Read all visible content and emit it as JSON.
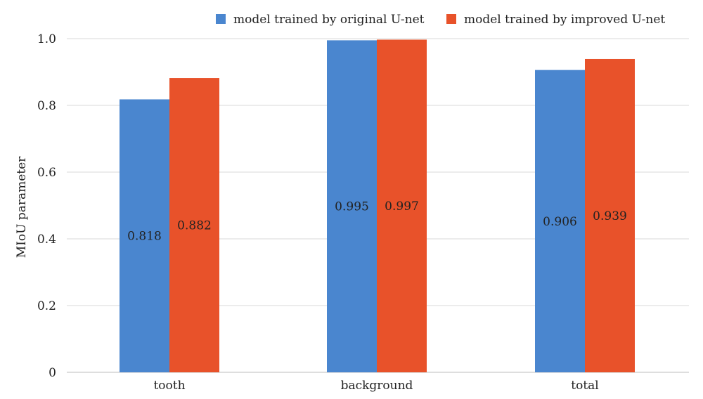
{
  "chart_data": {
    "type": "bar",
    "title": "",
    "xlabel": "",
    "ylabel": "MIoU parameter",
    "ylim": [
      0,
      1.0
    ],
    "yticks": [
      0,
      0.2,
      0.4,
      0.6,
      0.8,
      1.0
    ],
    "ytick_labels": [
      "0",
      "0.2",
      "0.4",
      "0.6",
      "0.8",
      "1.0"
    ],
    "categories": [
      "tooth",
      "background",
      "total"
    ],
    "series": [
      {
        "name": "model trained by original U-net",
        "color": "#4a86cf",
        "values": [
          0.818,
          0.995,
          0.906
        ],
        "labels": [
          "0.818",
          "0.995",
          "0.906"
        ]
      },
      {
        "name": "model trained by improved U-net",
        "color": "#e8522a",
        "values": [
          0.882,
          0.997,
          0.939
        ],
        "labels": [
          "0.882",
          "0.997",
          "0.939"
        ]
      }
    ],
    "grid": true,
    "legend_position": "top"
  }
}
